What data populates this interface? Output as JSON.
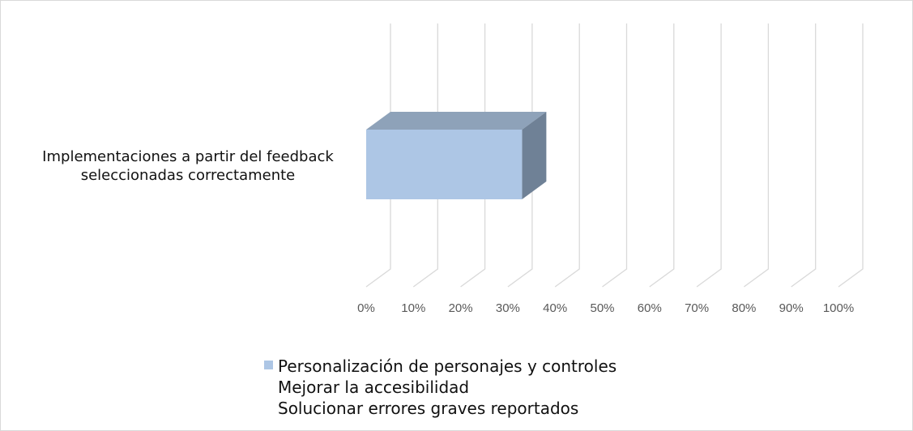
{
  "chart_data": {
    "type": "bar",
    "orientation": "horizontal",
    "style": "3d-clustered",
    "categories": [
      "Implementaciones a partir del feedback seleccionadas correctamente"
    ],
    "category_label_lines": [
      "Implementaciones a partir del feedback",
      "seleccionadas correctamente"
    ],
    "series": [
      {
        "name": "Personalización de personajes y controles",
        "values": [
          33
        ],
        "color": "#adc6e5",
        "top_color": "#8ea2b9",
        "side_color": "#6f8196"
      },
      {
        "name": "Mejorar la accesibilidad",
        "values": [
          0
        ]
      },
      {
        "name": "Solucionar errores graves reportados",
        "values": [
          0
        ]
      }
    ],
    "xlim": [
      0,
      100
    ],
    "x_ticks": [
      0,
      10,
      20,
      30,
      40,
      50,
      60,
      70,
      80,
      90,
      100
    ],
    "x_tick_labels": [
      "0%",
      "10%",
      "20%",
      "30%",
      "40%",
      "50%",
      "60%",
      "70%",
      "80%",
      "90%",
      "100%"
    ],
    "grid": true,
    "legend_position": "bottom",
    "title": "",
    "xlabel": "",
    "ylabel": ""
  }
}
